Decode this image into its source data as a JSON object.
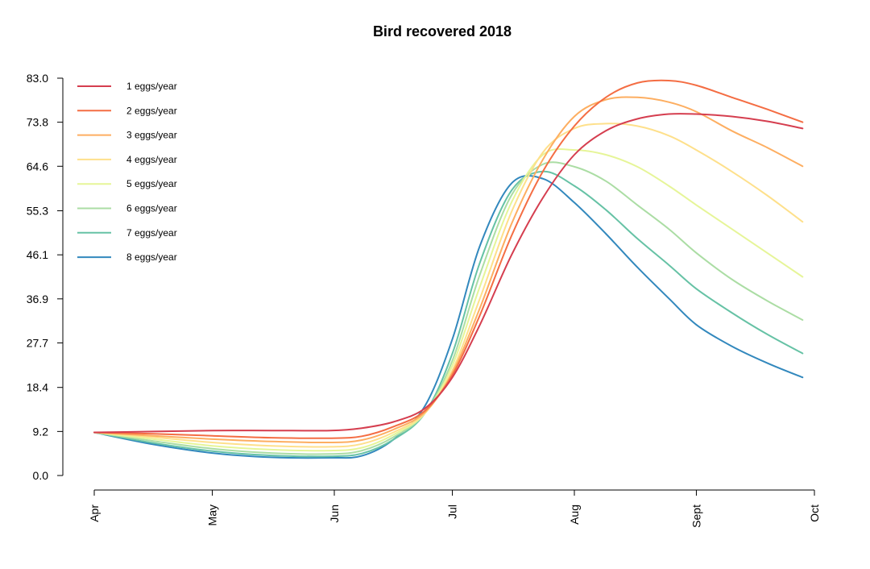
{
  "chart_data": {
    "type": "line",
    "title": "Bird recovered 2018",
    "xlabel": "",
    "ylabel": "",
    "x_ticks": [
      "Apr",
      "May",
      "Jun",
      "Jul",
      "Aug",
      "Sept",
      "Oct"
    ],
    "xlim": [
      "2018-04-01",
      "2018-10-01"
    ],
    "y_ticks": [
      "0.0",
      "9.2",
      "18.4",
      "27.7",
      "36.9",
      "46.1",
      "55.3",
      "64.6",
      "73.8",
      "83.0"
    ],
    "ylim": [
      0,
      83
    ],
    "grid": false,
    "legend_position": "top-left",
    "x": [
      "2018-04-01",
      "2018-04-16",
      "2018-05-01",
      "2018-05-16",
      "2018-05-31",
      "2018-06-08",
      "2018-06-16",
      "2018-06-24",
      "2018-07-01",
      "2018-07-08",
      "2018-07-16",
      "2018-07-24",
      "2018-08-01",
      "2018-08-09",
      "2018-08-17",
      "2018-08-25",
      "2018-09-01",
      "2018-09-10",
      "2018-09-19",
      "2018-09-28"
    ],
    "series": [
      {
        "name": "1 eggs/year",
        "color": "#d53e4f",
        "values": [
          9.0,
          9.2,
          9.4,
          9.4,
          9.4,
          9.9,
          11.2,
          14.0,
          20.5,
          31.5,
          46.0,
          58.0,
          67.0,
          72.0,
          74.5,
          75.5,
          75.5,
          75.0,
          74.0,
          72.5
        ]
      },
      {
        "name": "2 eggs/year",
        "color": "#f46d43",
        "values": [
          9.0,
          8.7,
          8.3,
          7.9,
          7.8,
          8.2,
          10.2,
          13.5,
          21.0,
          33.5,
          50.0,
          63.5,
          73.0,
          79.0,
          82.0,
          82.5,
          81.5,
          79.0,
          76.5,
          73.8
        ]
      },
      {
        "name": "3 eggs/year",
        "color": "#fdae61",
        "values": [
          9.0,
          8.3,
          7.6,
          7.1,
          6.9,
          7.4,
          9.6,
          13.2,
          21.5,
          35.0,
          52.5,
          66.0,
          75.0,
          78.5,
          79.0,
          78.0,
          76.0,
          72.0,
          68.5,
          64.6
        ]
      },
      {
        "name": "4 eggs/year",
        "color": "#fee08b",
        "values": [
          9.0,
          8.0,
          6.9,
          6.2,
          6.0,
          6.6,
          9.0,
          13.0,
          22.0,
          37.0,
          55.0,
          67.5,
          72.5,
          73.5,
          73.0,
          71.0,
          68.0,
          63.5,
          58.5,
          53.0
        ]
      },
      {
        "name": "5 eggs/year",
        "color": "#e6f598",
        "values": [
          9.0,
          7.6,
          6.2,
          5.4,
          5.2,
          5.8,
          8.5,
          13.0,
          23.0,
          39.5,
          57.0,
          67.0,
          68.0,
          67.0,
          64.5,
          60.5,
          56.5,
          51.5,
          46.5,
          41.5
        ]
      },
      {
        "name": "6 eggs/year",
        "color": "#abdda4",
        "values": [
          9.0,
          7.2,
          5.6,
          4.7,
          4.5,
          5.2,
          8.0,
          13.0,
          24.0,
          42.0,
          58.5,
          65.0,
          64.5,
          61.5,
          56.5,
          51.5,
          46.5,
          41.0,
          36.5,
          32.5
        ]
      },
      {
        "name": "7 eggs/year",
        "color": "#66c2a5",
        "values": [
          9.0,
          6.8,
          5.1,
          4.2,
          4.0,
          4.6,
          7.5,
          13.0,
          25.5,
          44.5,
          59.5,
          63.5,
          60.5,
          55.5,
          49.5,
          44.0,
          39.0,
          34.0,
          29.5,
          25.5
        ]
      },
      {
        "name": "8 eggs/year",
        "color": "#3288bd",
        "values": [
          9.0,
          6.5,
          4.7,
          3.8,
          3.7,
          4.1,
          7.5,
          14.5,
          28.5,
          48.0,
          61.0,
          62.0,
          57.0,
          50.5,
          43.5,
          37.0,
          31.5,
          27.0,
          23.5,
          20.5
        ]
      }
    ]
  }
}
